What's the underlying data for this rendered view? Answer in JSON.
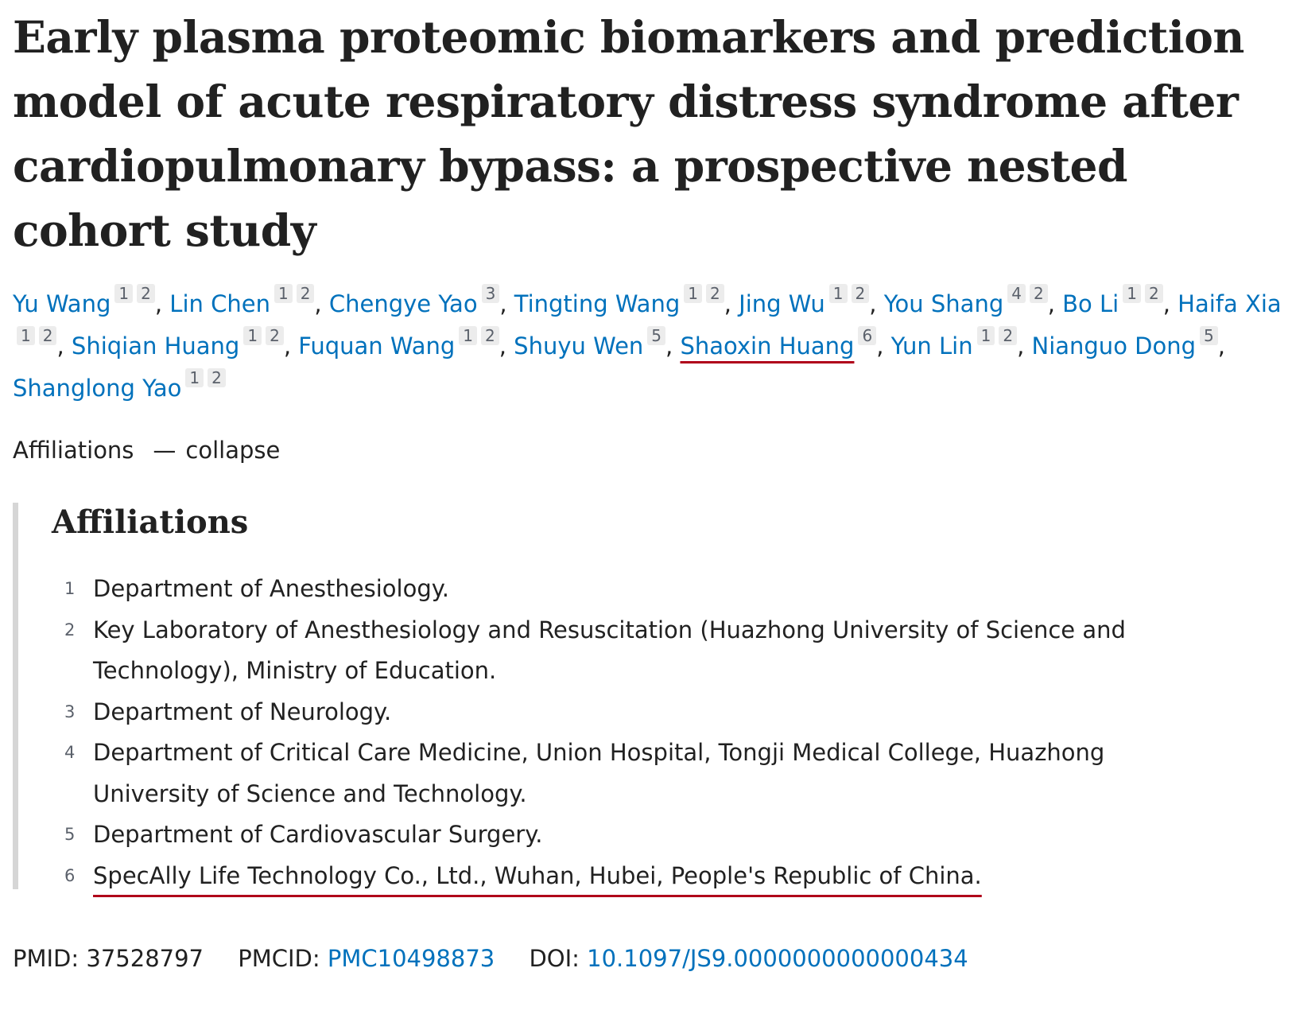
{
  "article": {
    "title": "Early plasma proteomic biomarkers and prediction model of acute respiratory distress syndrome after cardiopulmonary bypass: a prospective nested cohort study"
  },
  "authors": [
    {
      "name": "Yu Wang",
      "affs": [
        "1",
        "2"
      ]
    },
    {
      "name": "Lin Chen",
      "affs": [
        "1",
        "2"
      ]
    },
    {
      "name": "Chengye Yao",
      "affs": [
        "3"
      ]
    },
    {
      "name": "Tingting Wang",
      "affs": [
        "1",
        "2"
      ]
    },
    {
      "name": "Jing Wu",
      "affs": [
        "1",
        "2"
      ]
    },
    {
      "name": "You Shang",
      "affs": [
        "4",
        "2"
      ]
    },
    {
      "name": "Bo Li",
      "affs": [
        "1",
        "2"
      ]
    },
    {
      "name": "Haifa Xia",
      "affs": [
        "1",
        "2"
      ]
    },
    {
      "name": "Shiqian Huang",
      "affs": [
        "1",
        "2"
      ]
    },
    {
      "name": "Fuquan Wang",
      "affs": [
        "1",
        "2"
      ]
    },
    {
      "name": "Shuyu Wen",
      "affs": [
        "5"
      ]
    },
    {
      "name": "Shaoxin Huang",
      "affs": [
        "6"
      ],
      "highlighted": true
    },
    {
      "name": "Yun Lin",
      "affs": [
        "1",
        "2"
      ]
    },
    {
      "name": "Nianguo Dong",
      "affs": [
        "5"
      ]
    },
    {
      "name": "Shanglong Yao",
      "affs": [
        "1",
        "2"
      ]
    }
  ],
  "affiliations_toggle": {
    "label": "Affiliations",
    "action": "collapse"
  },
  "affiliations": {
    "heading": "Affiliations",
    "items": [
      {
        "num": "1",
        "text": "Department of Anesthesiology."
      },
      {
        "num": "2",
        "text": "Key Laboratory of Anesthesiology and Resuscitation (Huazhong University of Science and Technology), Ministry of Education."
      },
      {
        "num": "3",
        "text": "Department of Neurology."
      },
      {
        "num": "4",
        "text": "Department of Critical Care Medicine, Union Hospital, Tongji Medical College, Huazhong University of Science and Technology."
      },
      {
        "num": "5",
        "text": "Department of Cardiovascular Surgery."
      },
      {
        "num": "6",
        "text": "SpecAlly Life Technology Co., Ltd., Wuhan, Hubei, People's Republic of China.",
        "highlighted": true
      }
    ]
  },
  "identifiers": {
    "pmid_label": "PMID:",
    "pmid": "37528797",
    "pmcid_label": "PMCID:",
    "pmcid": "PMC10498873",
    "doi_label": "DOI:",
    "doi": "10.1097/JS9.0000000000000434"
  },
  "colors": {
    "link": "#0071bc",
    "highlight_underline": "#b0001a",
    "text": "#212121"
  }
}
